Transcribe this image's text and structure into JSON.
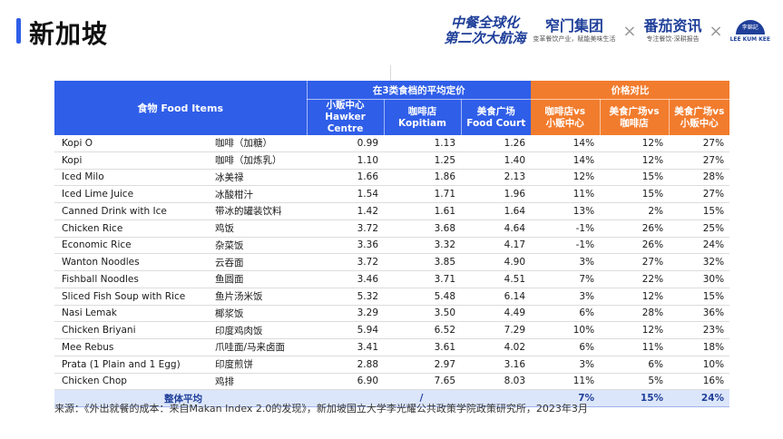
{
  "title": "新加坡",
  "logos": {
    "slogan_line1": "中餐全球化",
    "slogan_line2": "第二次大航海",
    "brand1_main": "窄门集团",
    "brand1_sub": "变革餐饮产业，赋能美味生活",
    "brand2_main": "番茄资讯",
    "brand2_sub": "专注餐饮·深耕报告",
    "brand3_mark": "李錦記",
    "brand3_text": "LEE KUM KEE",
    "x_sign": "×"
  },
  "table": {
    "header": {
      "food": "食物 Food Items",
      "price_group": "在3类食档的平均定价",
      "compare_group": "价格对比",
      "hawker_cn": "小贩中心",
      "hawker_en": "Hawker Centre",
      "kopitiam_cn": "咖啡店",
      "kopitiam_en": "Kopitiam",
      "foodcourt_cn": "美食广场",
      "foodcourt_en": "Food Court",
      "cmp1_a": "咖啡店vs",
      "cmp1_b": "小贩中心",
      "cmp2_a": "美食广场vs",
      "cmp2_b": "咖啡店",
      "cmp3_a": "美食广场vs",
      "cmp3_b": "小贩中心"
    },
    "rows": [
      {
        "en": "Kopi O",
        "cn": "咖啡（加糖）",
        "hawker": "0.99",
        "kopitiam": "1.13",
        "foodcourt": "1.26",
        "c1": "14%",
        "c2": "12%",
        "c3": "27%"
      },
      {
        "en": "Kopi",
        "cn": "咖啡（加炼乳）",
        "hawker": "1.10",
        "kopitiam": "1.25",
        "foodcourt": "1.40",
        "c1": "14%",
        "c2": "12%",
        "c3": "27%"
      },
      {
        "en": "Iced Milo",
        "cn": "冰美禄",
        "hawker": "1.66",
        "kopitiam": "1.86",
        "foodcourt": "2.13",
        "c1": "12%",
        "c2": "15%",
        "c3": "28%"
      },
      {
        "en": "Iced Lime Juice",
        "cn": "冰酸柑汁",
        "hawker": "1.54",
        "kopitiam": "1.71",
        "foodcourt": "1.96",
        "c1": "11%",
        "c2": "15%",
        "c3": "27%"
      },
      {
        "en": "Canned Drink with Ice",
        "cn": "带冰的罐装饮料",
        "hawker": "1.42",
        "kopitiam": "1.61",
        "foodcourt": "1.64",
        "c1": "13%",
        "c2": "2%",
        "c3": "15%"
      },
      {
        "en": "Chicken Rice",
        "cn": "鸡饭",
        "hawker": "3.72",
        "kopitiam": "3.68",
        "foodcourt": "4.64",
        "c1": "-1%",
        "c2": "26%",
        "c3": "25%"
      },
      {
        "en": "Economic Rice",
        "cn": "杂菜饭",
        "hawker": "3.36",
        "kopitiam": "3.32",
        "foodcourt": "4.17",
        "c1": "-1%",
        "c2": "26%",
        "c3": "24%"
      },
      {
        "en": "Wanton Noodles",
        "cn": "云吞面",
        "hawker": "3.72",
        "kopitiam": "3.85",
        "foodcourt": "4.90",
        "c1": "3%",
        "c2": "27%",
        "c3": "32%"
      },
      {
        "en": "Fishball Noodles",
        "cn": "鱼圆面",
        "hawker": "3.46",
        "kopitiam": "3.71",
        "foodcourt": "4.51",
        "c1": "7%",
        "c2": "22%",
        "c3": "30%"
      },
      {
        "en": "Sliced Fish Soup with Rice",
        "cn": "鱼片汤米饭",
        "hawker": "5.32",
        "kopitiam": "5.48",
        "foodcourt": "6.14",
        "c1": "3%",
        "c2": "12%",
        "c3": "15%"
      },
      {
        "en": "Nasi Lemak",
        "cn": "椰浆饭",
        "hawker": "3.29",
        "kopitiam": "3.50",
        "foodcourt": "4.49",
        "c1": "6%",
        "c2": "28%",
        "c3": "36%"
      },
      {
        "en": "Chicken Briyani",
        "cn": "印度鸡肉饭",
        "hawker": "5.94",
        "kopitiam": "6.52",
        "foodcourt": "7.29",
        "c1": "10%",
        "c2": "12%",
        "c3": "23%"
      },
      {
        "en": "Mee Rebus",
        "cn": "爪哇面/马来卤面",
        "hawker": "3.41",
        "kopitiam": "3.61",
        "foodcourt": "4.02",
        "c1": "6%",
        "c2": "11%",
        "c3": "18%"
      },
      {
        "en": "Prata (1 Plain and 1 Egg)",
        "cn": "印度煎饼",
        "hawker": "2.88",
        "kopitiam": "2.97",
        "foodcourt": "3.16",
        "c1": "3%",
        "c2": "6%",
        "c3": "10%"
      },
      {
        "en": "Chicken Chop",
        "cn": "鸡排",
        "hawker": "6.90",
        "kopitiam": "7.65",
        "foodcourt": "8.03",
        "c1": "11%",
        "c2": "5%",
        "c3": "16%"
      }
    ],
    "average": {
      "label": "整体平均",
      "slash": "/",
      "c1": "7%",
      "c2": "15%",
      "c3": "24%"
    }
  },
  "source": "来源：《外出就餐的成本：来自Makan Index 2.0的发现》，新加坡国立大学李光耀公共政策学院政策研究所，2023年3月",
  "colors": {
    "accent_blue": "#2f5ee8",
    "accent_orange": "#f27c2d",
    "avg_row": "#dce6fb"
  }
}
